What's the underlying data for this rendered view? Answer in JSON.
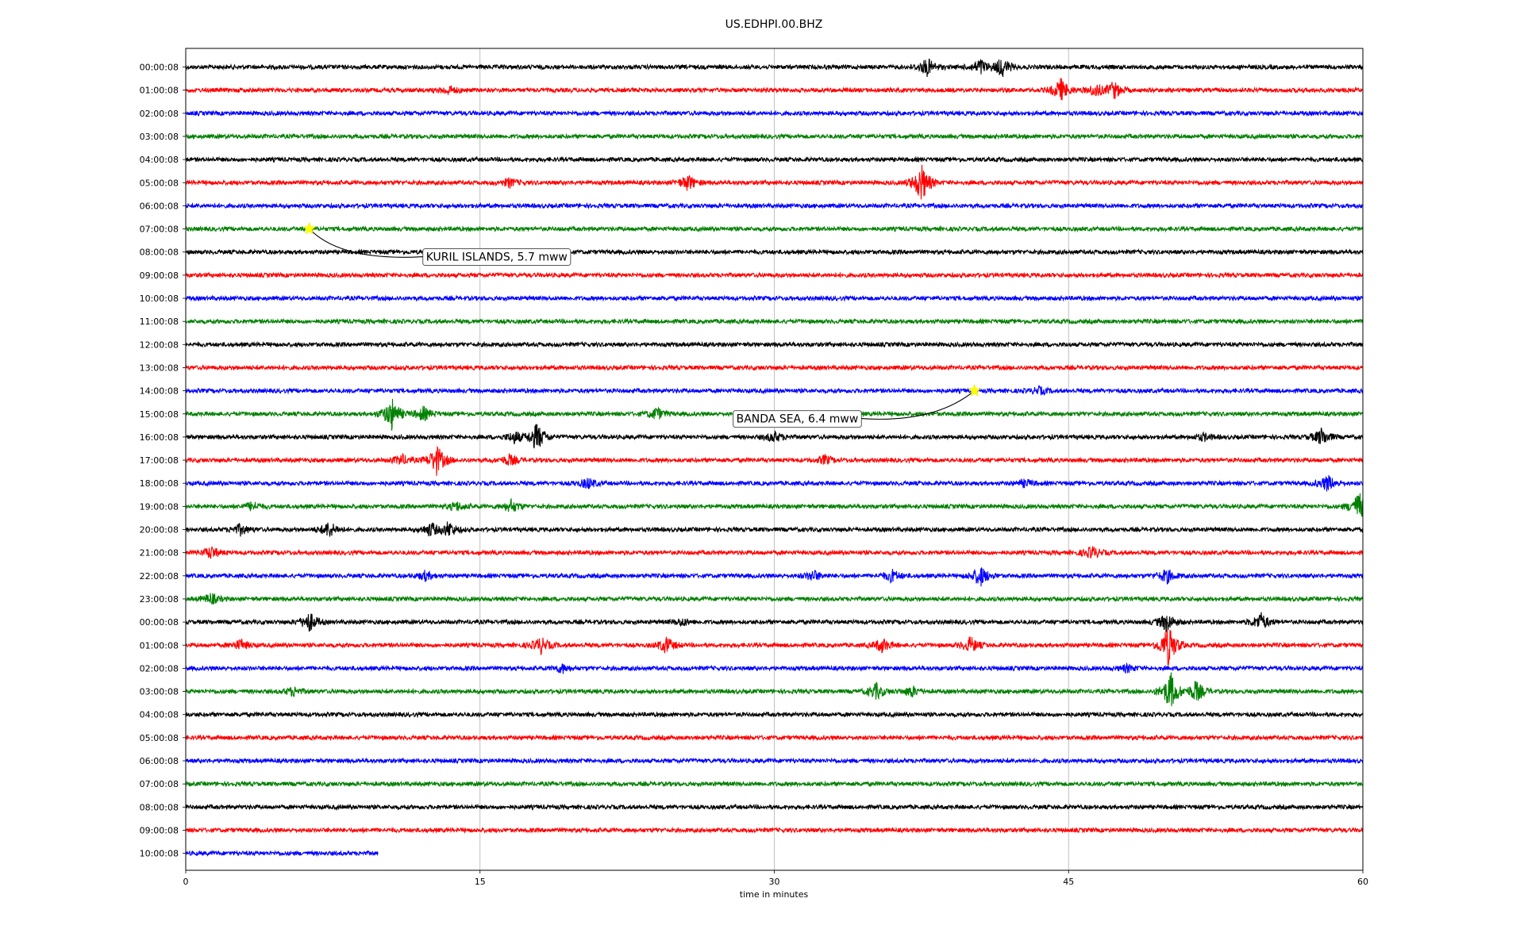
{
  "chart_data": {
    "type": "line",
    "title": "US.EDHPI.00.BHZ",
    "xlabel": "time in minutes",
    "ylabel": "",
    "xlim": [
      0,
      60
    ],
    "xticks": [
      0,
      15,
      30,
      45,
      60
    ],
    "grid_x": true,
    "colors": [
      "#000000",
      "#ff0000",
      "#0000ff",
      "#008000"
    ],
    "row_labels": [
      "00:00:08",
      "01:00:08",
      "02:00:08",
      "03:00:08",
      "04:00:08",
      "05:00:08",
      "06:00:08",
      "07:00:08",
      "08:00:08",
      "09:00:08",
      "10:00:08",
      "11:00:08",
      "12:00:08",
      "13:00:08",
      "14:00:08",
      "15:00:08",
      "16:00:08",
      "17:00:08",
      "18:00:08",
      "19:00:08",
      "20:00:08",
      "21:00:08",
      "22:00:08",
      "23:00:08",
      "00:00:08",
      "01:00:08",
      "02:00:08",
      "03:00:08",
      "04:00:08",
      "05:00:08",
      "06:00:08",
      "07:00:08",
      "08:00:08",
      "09:00:08",
      "10:00:08"
    ],
    "last_row_end_minutes": 9.8,
    "bursts": [
      {
        "row": 0,
        "minute": 37.8,
        "amp": 1.0
      },
      {
        "row": 0,
        "minute": 40.5,
        "amp": 0.9
      },
      {
        "row": 0,
        "minute": 41.6,
        "amp": 1.1
      },
      {
        "row": 1,
        "minute": 13.4,
        "amp": 0.5
      },
      {
        "row": 1,
        "minute": 44.6,
        "amp": 1.3
      },
      {
        "row": 1,
        "minute": 46.4,
        "amp": 0.8
      },
      {
        "row": 1,
        "minute": 47.3,
        "amp": 1.0
      },
      {
        "row": 5,
        "minute": 16.5,
        "amp": 0.5
      },
      {
        "row": 5,
        "minute": 25.6,
        "amp": 0.9
      },
      {
        "row": 5,
        "minute": 37.5,
        "amp": 2.2
      },
      {
        "row": 14,
        "minute": 43.5,
        "amp": 0.4
      },
      {
        "row": 15,
        "minute": 10.5,
        "amp": 1.8
      },
      {
        "row": 15,
        "minute": 12.1,
        "amp": 0.8
      },
      {
        "row": 15,
        "minute": 24.0,
        "amp": 0.7
      },
      {
        "row": 16,
        "minute": 16.8,
        "amp": 0.7
      },
      {
        "row": 16,
        "minute": 17.9,
        "amp": 1.6
      },
      {
        "row": 16,
        "minute": 30.0,
        "amp": 0.6
      },
      {
        "row": 16,
        "minute": 51.9,
        "amp": 0.4
      },
      {
        "row": 16,
        "minute": 57.9,
        "amp": 1.0
      },
      {
        "row": 17,
        "minute": 11.0,
        "amp": 0.6
      },
      {
        "row": 17,
        "minute": 12.8,
        "amp": 1.7
      },
      {
        "row": 17,
        "minute": 16.5,
        "amp": 0.6
      },
      {
        "row": 17,
        "minute": 32.6,
        "amp": 0.5
      },
      {
        "row": 18,
        "minute": 20.5,
        "amp": 0.6
      },
      {
        "row": 18,
        "minute": 42.8,
        "amp": 0.4
      },
      {
        "row": 18,
        "minute": 58.2,
        "amp": 0.9
      },
      {
        "row": 19,
        "minute": 3.4,
        "amp": 0.5
      },
      {
        "row": 19,
        "minute": 13.8,
        "amp": 0.5
      },
      {
        "row": 19,
        "minute": 16.6,
        "amp": 0.7
      },
      {
        "row": 19,
        "minute": 59.8,
        "amp": 1.6
      },
      {
        "row": 20,
        "minute": 2.8,
        "amp": 0.6
      },
      {
        "row": 20,
        "minute": 7.3,
        "amp": 0.9
      },
      {
        "row": 20,
        "minute": 12.5,
        "amp": 0.8
      },
      {
        "row": 20,
        "minute": 13.4,
        "amp": 0.9
      },
      {
        "row": 21,
        "minute": 1.3,
        "amp": 0.7
      },
      {
        "row": 21,
        "minute": 46.2,
        "amp": 0.7
      },
      {
        "row": 22,
        "minute": 12.2,
        "amp": 0.5
      },
      {
        "row": 22,
        "minute": 32.0,
        "amp": 0.6
      },
      {
        "row": 22,
        "minute": 36.0,
        "amp": 0.7
      },
      {
        "row": 22,
        "minute": 40.5,
        "amp": 1.2
      },
      {
        "row": 22,
        "minute": 50.0,
        "amp": 0.8
      },
      {
        "row": 23,
        "minute": 1.3,
        "amp": 0.6
      },
      {
        "row": 24,
        "minute": 6.3,
        "amp": 1.1
      },
      {
        "row": 24,
        "minute": 25.3,
        "amp": 0.4
      },
      {
        "row": 24,
        "minute": 50.0,
        "amp": 1.1
      },
      {
        "row": 24,
        "minute": 54.8,
        "amp": 1.0
      },
      {
        "row": 25,
        "minute": 2.8,
        "amp": 0.6
      },
      {
        "row": 25,
        "minute": 18.1,
        "amp": 0.9
      },
      {
        "row": 25,
        "minute": 24.5,
        "amp": 0.9
      },
      {
        "row": 25,
        "minute": 35.5,
        "amp": 0.8
      },
      {
        "row": 25,
        "minute": 40.0,
        "amp": 0.9
      },
      {
        "row": 25,
        "minute": 50.1,
        "amp": 2.4
      },
      {
        "row": 26,
        "minute": 19.2,
        "amp": 0.5
      },
      {
        "row": 26,
        "minute": 48.0,
        "amp": 0.4
      },
      {
        "row": 27,
        "minute": 5.5,
        "amp": 0.5
      },
      {
        "row": 27,
        "minute": 35.2,
        "amp": 0.9
      },
      {
        "row": 27,
        "minute": 37.0,
        "amp": 0.6
      },
      {
        "row": 27,
        "minute": 50.2,
        "amp": 2.2
      },
      {
        "row": 27,
        "minute": 51.5,
        "amp": 1.2
      }
    ],
    "annotations": [
      {
        "row": 7,
        "minute": 6.3,
        "text": "KURIL ISLANDS, 5.7 mww"
      },
      {
        "row": 14,
        "minute": 40.2,
        "text": "BANDA SEA, 6.4 mww"
      }
    ]
  }
}
